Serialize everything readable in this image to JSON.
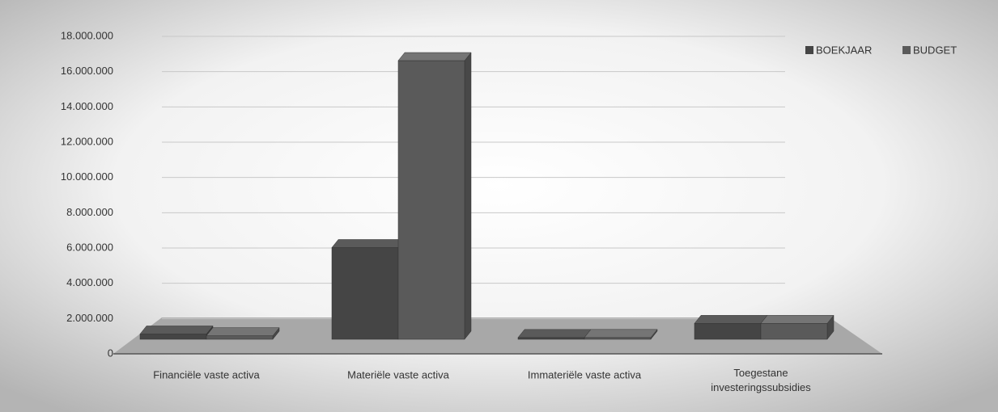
{
  "chart_data": {
    "type": "bar3d",
    "categories": [
      "Financiële vaste activa",
      "Materiële vaste activa",
      "Immateriële vaste activa",
      "Toegestane investeringssubsidies"
    ],
    "series": [
      {
        "name": "BOEKJAAR",
        "color": "#454545",
        "values": [
          300000,
          5200000,
          100000,
          900000
        ]
      },
      {
        "name": "BUDGET",
        "color": "#5a5a5a",
        "values": [
          200000,
          15800000,
          100000,
          900000
        ]
      }
    ],
    "ylim": [
      0,
      18000000
    ],
    "yticks": [
      0,
      {
        "value": 2000000,
        "label": "2.000.000"
      },
      {
        "value": 4000000,
        "label": "4.000.000"
      },
      {
        "value": 6000000,
        "label": "6.000.000"
      },
      {
        "value": 8000000,
        "label": "8.000.000"
      },
      {
        "value": 10000000,
        "label": "10.000.000"
      },
      {
        "value": 12000000,
        "label": "12.000.000"
      },
      {
        "value": 14000000,
        "label": "14.000.000"
      },
      {
        "value": 16000000,
        "label": "16.000.000"
      },
      {
        "value": 18000000,
        "label": "18.000.000"
      }
    ],
    "grid": true,
    "legend": "top-right"
  }
}
